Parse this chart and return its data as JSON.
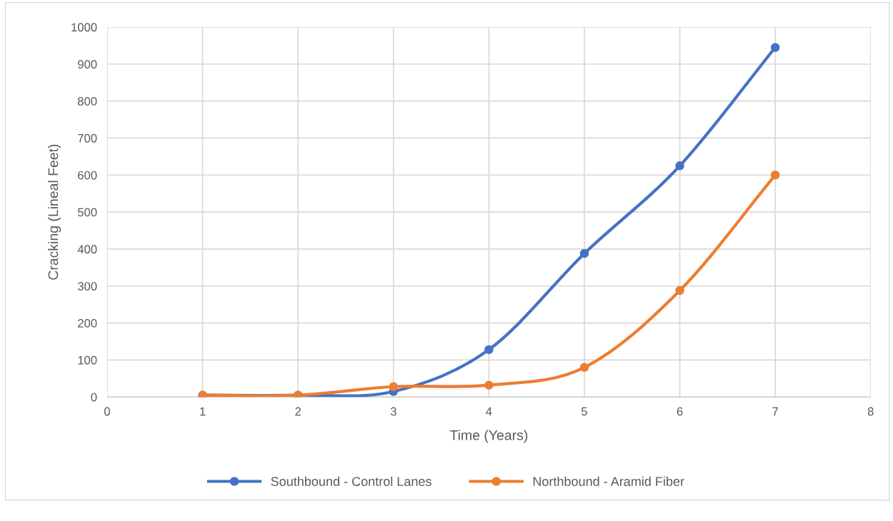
{
  "chart_data": {
    "type": "line",
    "xlabel": "Time (Years)",
    "ylabel": "Cracking (Lineal Feet)",
    "x": [
      1,
      2,
      3,
      4,
      5,
      6,
      7
    ],
    "series": [
      {
        "name": "Southbound - Control Lanes",
        "color": "#4472c4",
        "values": [
          5,
          5,
          15,
          128,
          388,
          625,
          945
        ]
      },
      {
        "name": "Northbound - Aramid Fiber",
        "color": "#ed7d31",
        "values": [
          5,
          5,
          28,
          32,
          80,
          288,
          600
        ]
      }
    ],
    "xlim": [
      0,
      8
    ],
    "xticks": [
      0,
      1,
      2,
      3,
      4,
      5,
      6,
      7,
      8
    ],
    "ylim": [
      0,
      1000
    ],
    "yticks": [
      0,
      100,
      200,
      300,
      400,
      500,
      600,
      700,
      800,
      900,
      1000
    ],
    "grid": true,
    "legend": "bottom",
    "marker": "circle",
    "line_style": "solid"
  }
}
